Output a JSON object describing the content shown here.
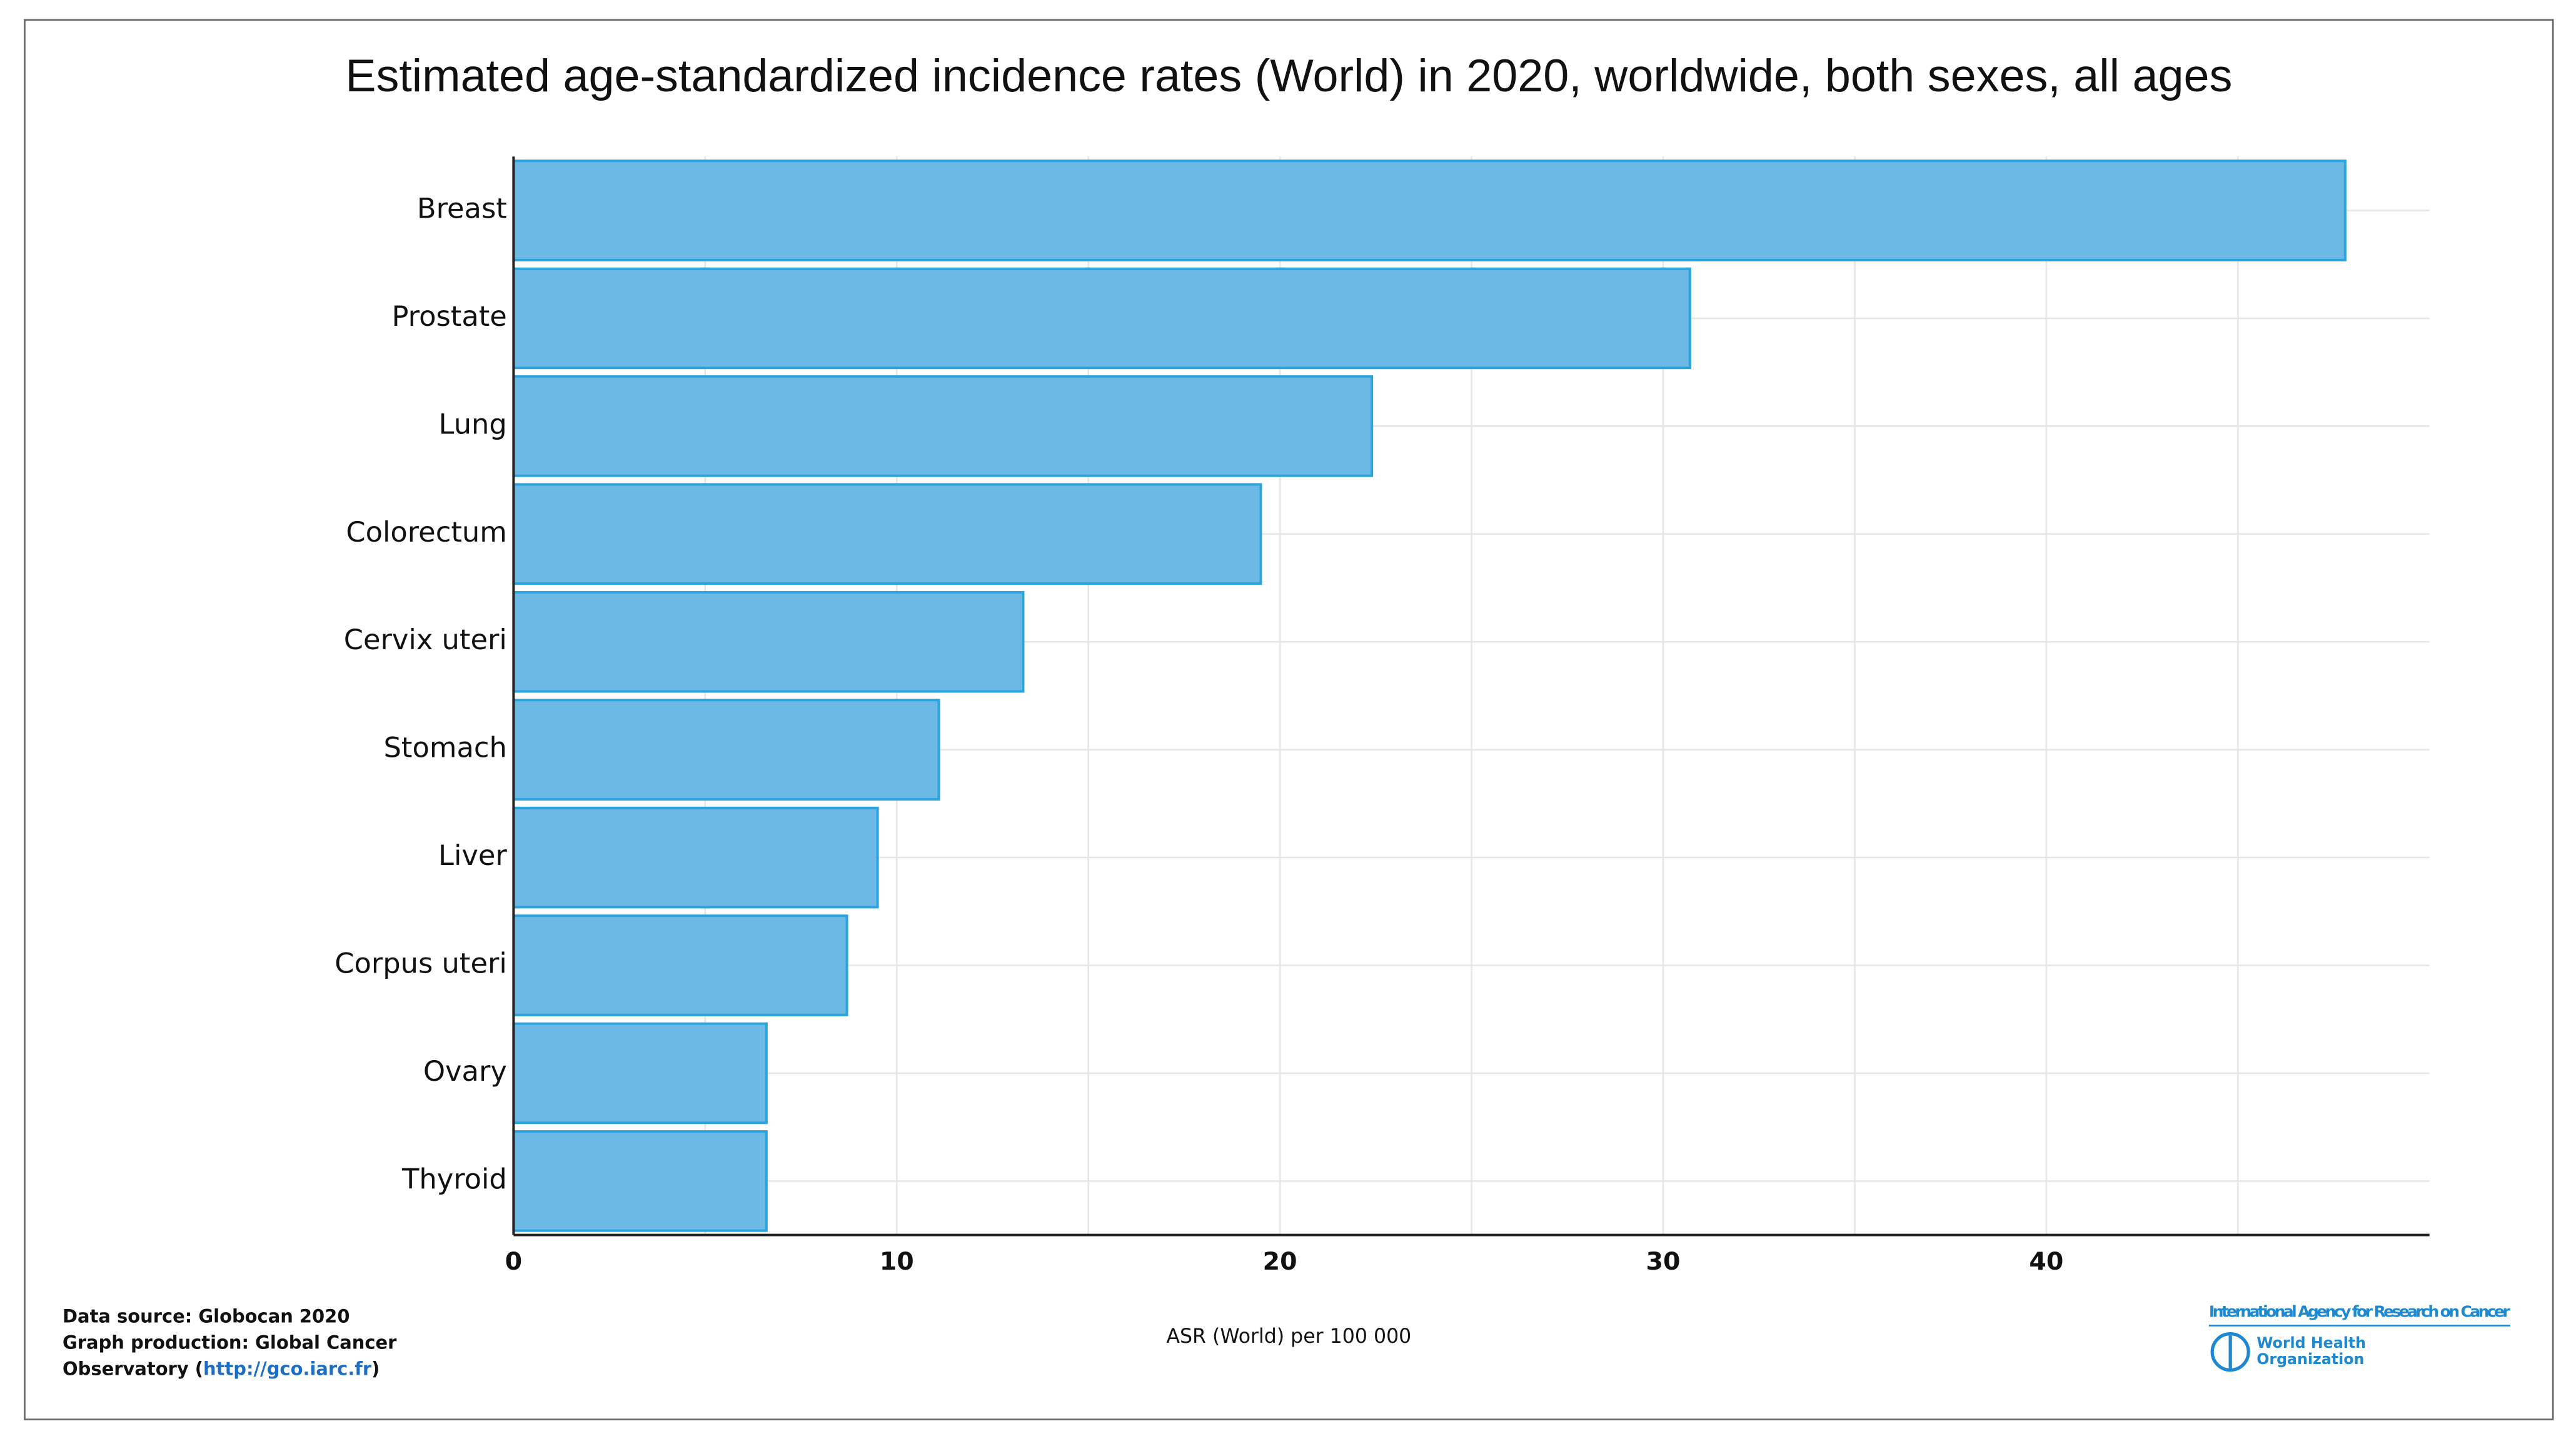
{
  "chart_data": {
    "type": "bar",
    "orientation": "horizontal",
    "title": "Estimated age-standardized incidence rates (World) in 2020, worldwide, both sexes, all ages",
    "categories": [
      "Breast",
      "Prostate",
      "Lung",
      "Colorectum",
      "Cervix uteri",
      "Stomach",
      "Liver",
      "Corpus uteri",
      "Ovary",
      "Thyroid"
    ],
    "values": [
      47.8,
      30.7,
      22.4,
      19.5,
      13.3,
      11.1,
      9.5,
      8.7,
      6.6,
      6.6
    ],
    "color": "#6bb9e4",
    "edge_color": "#2ba3dc",
    "xlabel": "ASR (World) per 100 000",
    "xlim": [
      0,
      50
    ],
    "xticks": [
      0,
      10,
      20,
      30,
      40
    ],
    "xminorticks": [
      5,
      15,
      25,
      35,
      45
    ],
    "grid": true
  },
  "footer": {
    "source_lines": [
      "Data source: Globocan 2020",
      "Graph production: Global Cancer",
      "Observatory ("
    ],
    "link": "http://gco.iarc.fr",
    "link_close": ")",
    "agency": "International Agency for Research on Cancer",
    "who_lines": [
      "World Health",
      "Organization"
    ]
  }
}
